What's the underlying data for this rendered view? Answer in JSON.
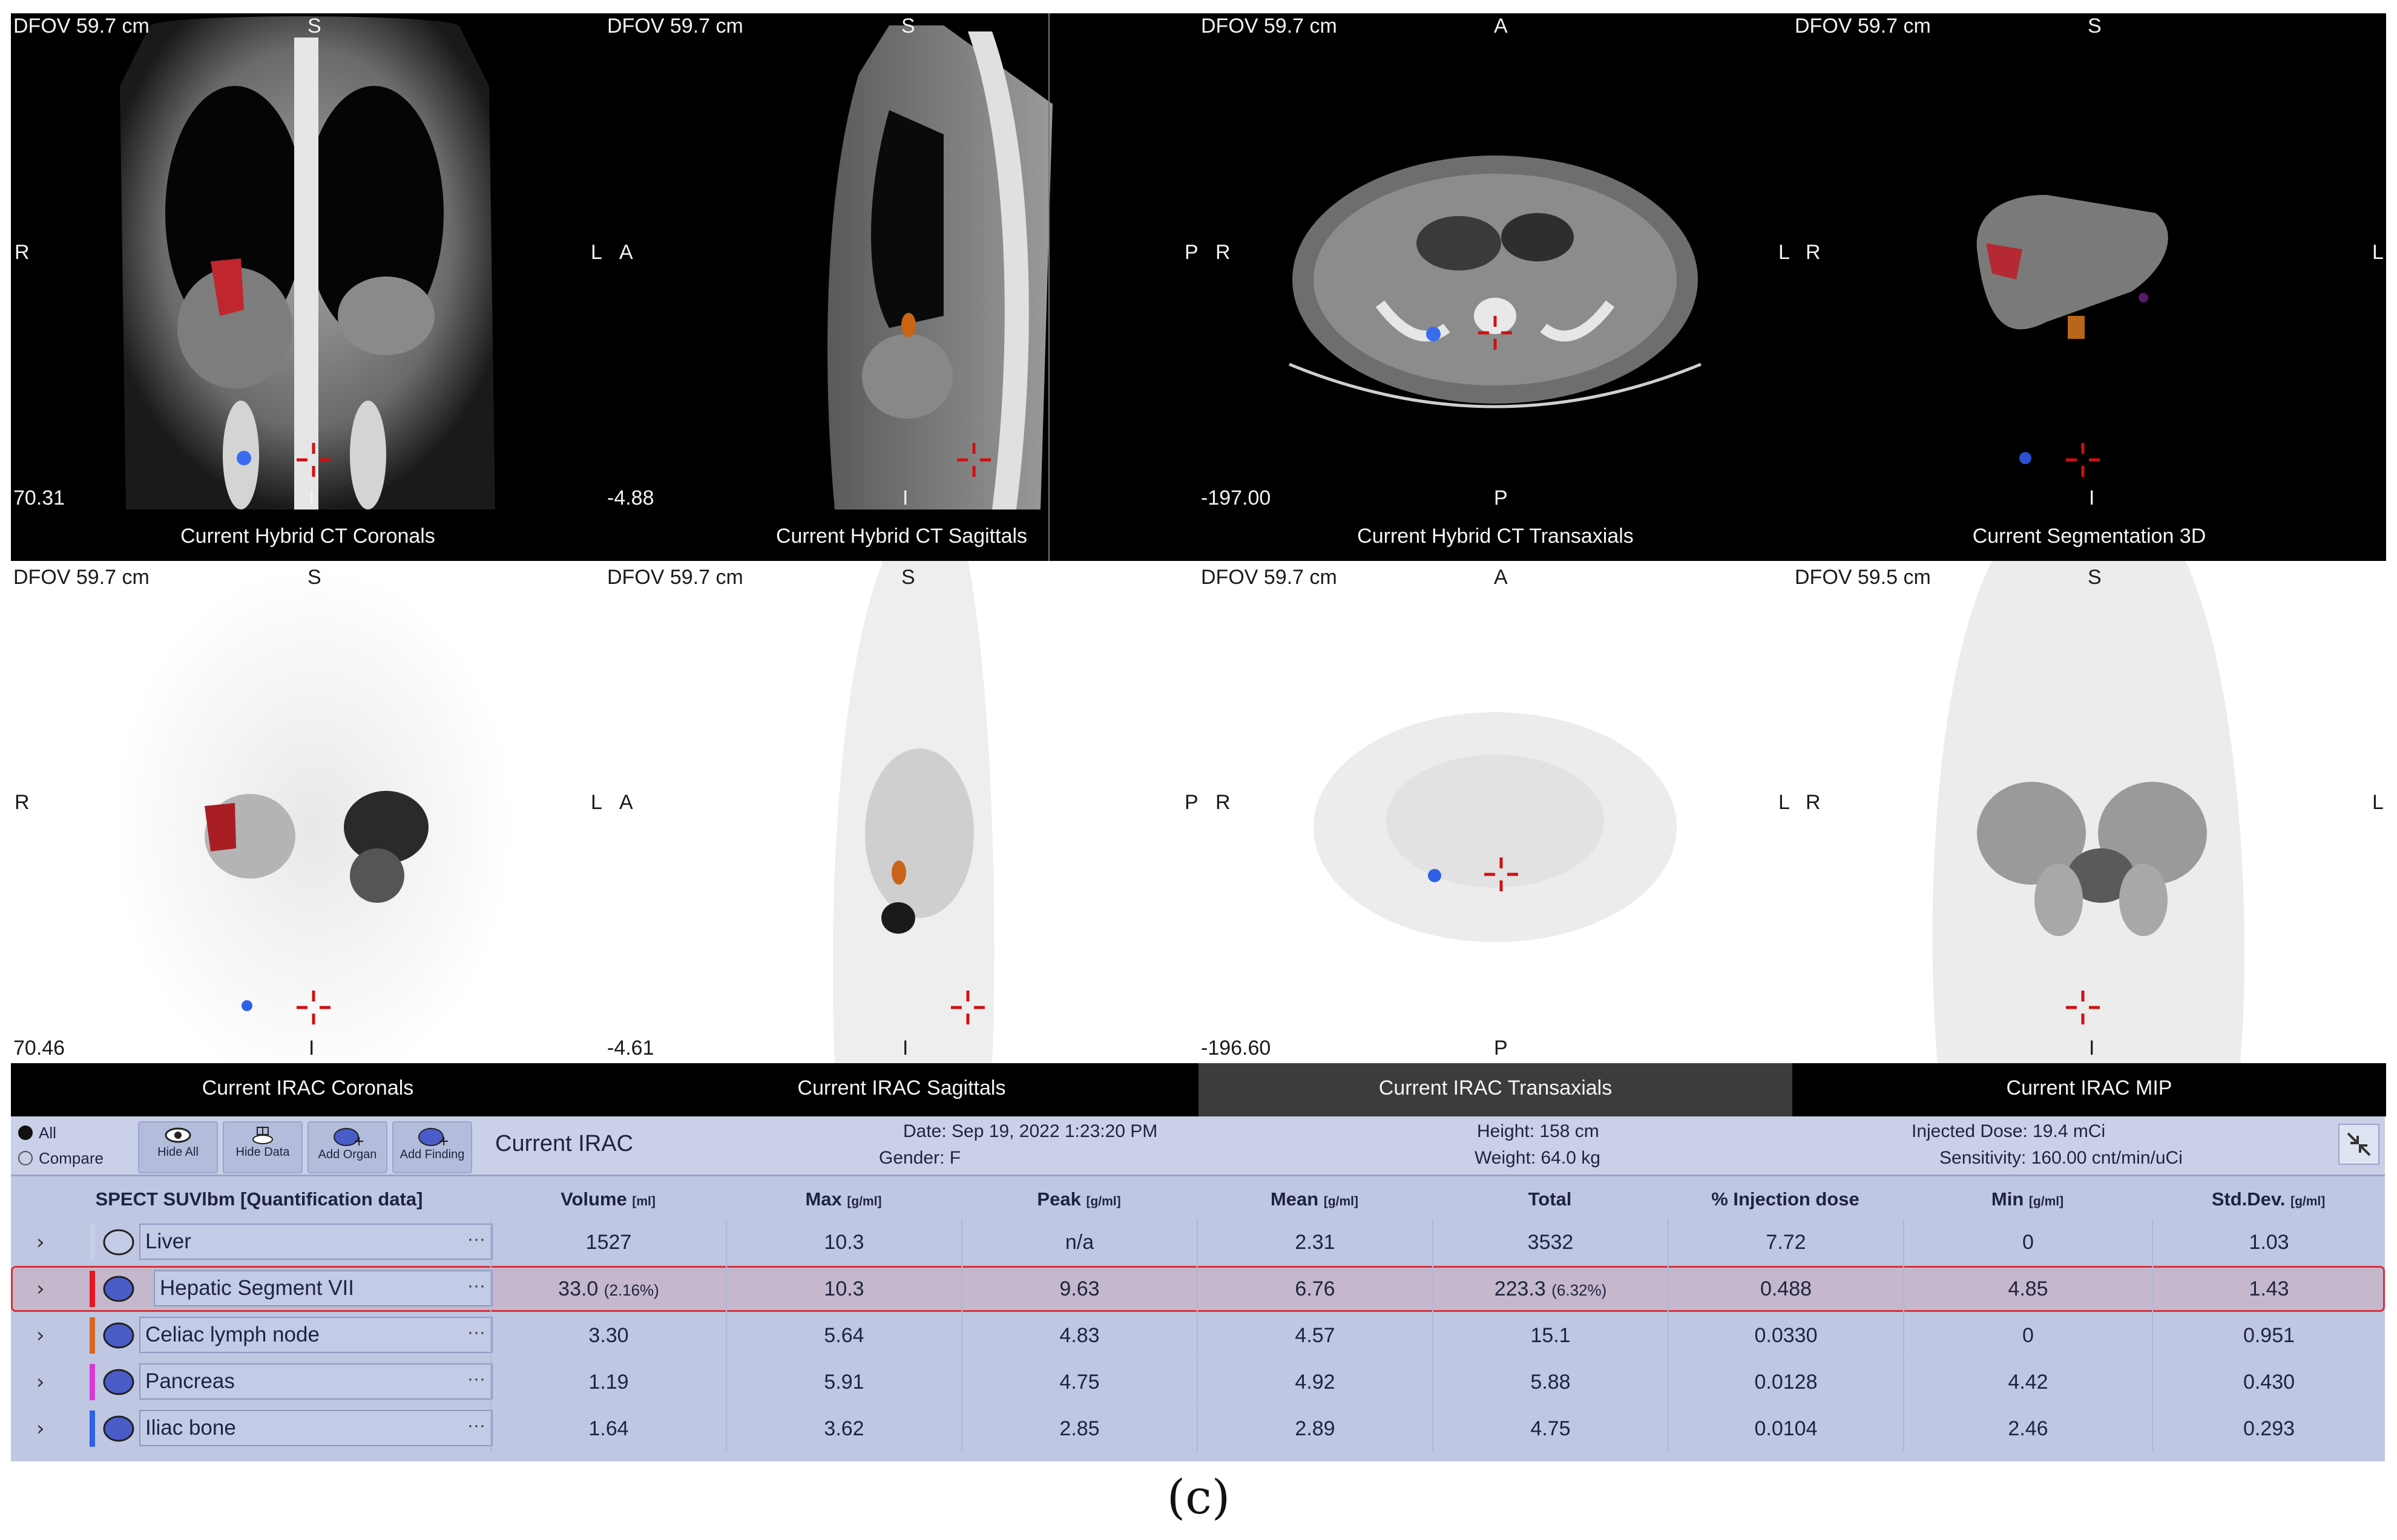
{
  "viewports": {
    "ct_coronal": {
      "dfov": "DFOV 59.7 cm",
      "top": "S",
      "left": "R",
      "right": "",
      "bottom": "I",
      "slice": "70.31",
      "caption": "Current Hybrid CT Coronals"
    },
    "ct_sagittal": {
      "dfov": "DFOV 59.7 cm",
      "top": "S",
      "left": "A",
      "right": "",
      "bottom": "I",
      "slice": "-4.88",
      "caption": "Current Hybrid CT Sagittals"
    },
    "ct_transaxial": {
      "dfov": "DFOV 59.7 cm",
      "top": "A",
      "left": "R",
      "right": "",
      "bottom": "P",
      "slice": "-197.00",
      "caption": "Current Hybrid CT Transaxials"
    },
    "seg_3d": {
      "dfov": "DFOV 59.7 cm",
      "top": "S",
      "left": "R",
      "right": "L",
      "bottom": "I",
      "slice": "",
      "caption": "Current Segmentation 3D"
    },
    "irac_coronal": {
      "dfov": "DFOV 59.7 cm",
      "top": "S",
      "left": "R",
      "right": "",
      "bottom": "I",
      "slice": "70.46",
      "caption": "Current IRAC Coronals"
    },
    "irac_sagittal": {
      "dfov": "DFOV 59.7 cm",
      "top": "S",
      "left": "A",
      "right": "",
      "bottom": "I",
      "slice": "-4.61",
      "caption": "Current IRAC Sagittals"
    },
    "irac_transaxial": {
      "dfov": "DFOV 59.7 cm",
      "top": "A",
      "left": "R",
      "right": "",
      "bottom": "P",
      "slice": "-196.60",
      "caption": "Current IRAC Transaxials"
    },
    "irac_mip": {
      "dfov": "DFOV 59.5 cm",
      "top": "S",
      "left": "R",
      "right": "L",
      "bottom": "I",
      "slice": "",
      "caption": "Current IRAC MIP"
    }
  },
  "sideLabels": {
    "coronal_right": "L",
    "sagittal_right": "P",
    "transaxial_right": "L"
  },
  "toolbar": {
    "radio_all": "All",
    "radio_compare": "Compare",
    "hide_all": "Hide All",
    "hide_data": "Hide Data",
    "add_organ": "Add Organ",
    "add_finding": "Add Finding",
    "title": "Current IRAC"
  },
  "patient": {
    "date": "Date: Sep 19, 2022 1:23:20 PM",
    "gender": "Gender: F",
    "height": "Height: 158 cm",
    "weight": "Weight: 64.0 kg",
    "dose": "Injected Dose: 19.4 mCi",
    "sensitivity": "Sensitivity: 160.00 cnt/min/uCi"
  },
  "table": {
    "title": "SPECT SUVlbm [Quantification data]",
    "columns": [
      {
        "label": "Volume",
        "unit": "[ml]"
      },
      {
        "label": "Max",
        "unit": "[g/ml]"
      },
      {
        "label": "Peak",
        "unit": "[g/ml]"
      },
      {
        "label": "Mean",
        "unit": "[g/ml]"
      },
      {
        "label": "Total",
        "unit": ""
      },
      {
        "label": "% Injection dose",
        "unit": ""
      },
      {
        "label": "Min",
        "unit": "[g/ml]"
      },
      {
        "label": "Std.Dev.",
        "unit": "[g/ml]"
      }
    ],
    "rows": [
      {
        "name": "Liver",
        "color": "#c9cfe6",
        "volume": "1527",
        "volume_pct": "",
        "max": "10.3",
        "peak": "n/a",
        "mean": "2.31",
        "total": "3532",
        "total_pct": "",
        "injection": "7.72",
        "min": "0",
        "std": "1.03"
      },
      {
        "name": "Hepatic Segment VII",
        "color": "#e8141e",
        "volume": "33.0",
        "volume_pct": "(2.16%)",
        "max": "10.3",
        "peak": "9.63",
        "mean": "6.76",
        "total": "223.3",
        "total_pct": "(6.32%)",
        "injection": "0.488",
        "min": "4.85",
        "std": "1.43"
      },
      {
        "name": "Celiac lymph node",
        "color": "#d2691e",
        "volume": "3.30",
        "volume_pct": "",
        "max": "5.64",
        "peak": "4.83",
        "mean": "4.57",
        "total": "15.1",
        "total_pct": "",
        "injection": "0.0330",
        "min": "0",
        "std": "0.951"
      },
      {
        "name": "Pancreas",
        "color": "#d63ad6",
        "volume": "1.19",
        "volume_pct": "",
        "max": "5.91",
        "peak": "4.75",
        "mean": "4.92",
        "total": "5.88",
        "total_pct": "",
        "injection": "0.0128",
        "min": "4.42",
        "std": "0.430"
      },
      {
        "name": "Iliac bone",
        "color": "#2e62e6",
        "volume": "1.64",
        "volume_pct": "",
        "max": "3.62",
        "peak": "2.85",
        "mean": "2.89",
        "total": "4.75",
        "total_pct": "",
        "injection": "0.0104",
        "min": "2.46",
        "std": "0.293"
      }
    ]
  },
  "figure_caption": "(c)",
  "colors": {
    "panel": "#bfc7e2",
    "selected_row": "#c5b8cc",
    "selection_outline": "#d8303a"
  }
}
